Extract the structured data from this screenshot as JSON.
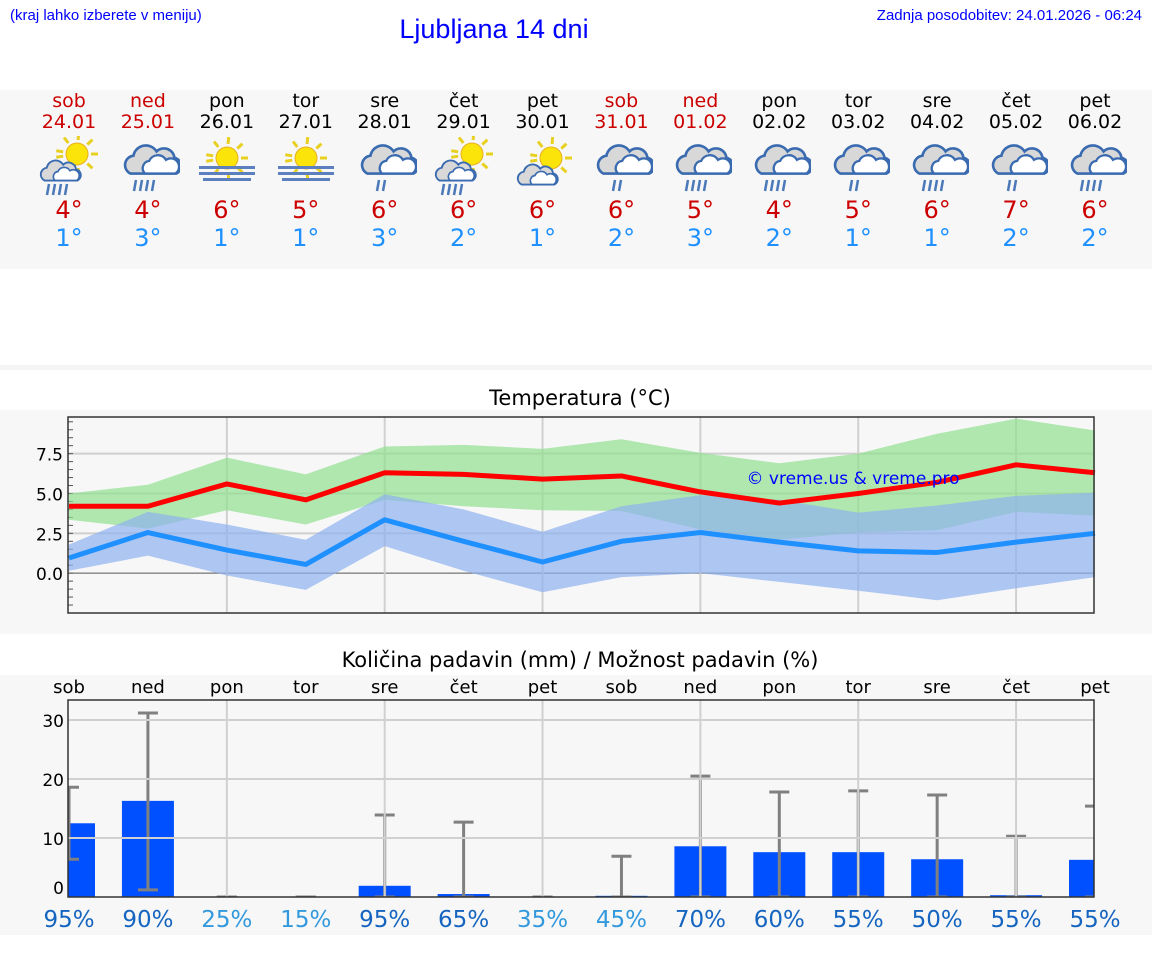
{
  "header": {
    "hint": "(kraj lahko izberete v meniju)",
    "title": "Ljubljana 14 dni",
    "updated": "Zadnja posodobitev: 24.01.2026 - 06:24"
  },
  "colors": {
    "weekend": "#cc0000",
    "weekday": "#000000",
    "max_temp": "#cc0000",
    "min_temp": "#1e90ff",
    "link": "#0000ff"
  },
  "days": [
    {
      "name": "sob",
      "date": "24.01",
      "weekend": true,
      "icon": "sun-cloud-rain",
      "max": "4°",
      "min": "1°"
    },
    {
      "name": "ned",
      "date": "25.01",
      "weekend": true,
      "icon": "cloud-heavy-rain",
      "max": "4°",
      "min": "3°"
    },
    {
      "name": "pon",
      "date": "26.01",
      "weekend": false,
      "icon": "sun-fog",
      "max": "6°",
      "min": "1°"
    },
    {
      "name": "tor",
      "date": "27.01",
      "weekend": false,
      "icon": "sun-fog",
      "max": "5°",
      "min": "1°"
    },
    {
      "name": "sre",
      "date": "28.01",
      "weekend": false,
      "icon": "cloud-light-rain",
      "max": "6°",
      "min": "3°"
    },
    {
      "name": "čet",
      "date": "29.01",
      "weekend": false,
      "icon": "sun-cloud-rain",
      "max": "6°",
      "min": "2°"
    },
    {
      "name": "pet",
      "date": "30.01",
      "weekend": false,
      "icon": "sun-cloud",
      "max": "6°",
      "min": "1°"
    },
    {
      "name": "sob",
      "date": "31.01",
      "weekend": true,
      "icon": "cloud-light-rain",
      "max": "6°",
      "min": "2°"
    },
    {
      "name": "ned",
      "date": "01.02",
      "weekend": true,
      "icon": "cloud-heavy-rain",
      "max": "5°",
      "min": "3°"
    },
    {
      "name": "pon",
      "date": "02.02",
      "weekend": false,
      "icon": "cloud-heavy-rain",
      "max": "4°",
      "min": "2°"
    },
    {
      "name": "tor",
      "date": "03.02",
      "weekend": false,
      "icon": "cloud-light-rain",
      "max": "5°",
      "min": "1°"
    },
    {
      "name": "sre",
      "date": "04.02",
      "weekend": false,
      "icon": "cloud-heavy-rain",
      "max": "6°",
      "min": "1°"
    },
    {
      "name": "čet",
      "date": "05.02",
      "weekend": false,
      "icon": "cloud-light-rain",
      "max": "7°",
      "min": "2°"
    },
    {
      "name": "pet",
      "date": "06.02",
      "weekend": false,
      "icon": "cloud-heavy-rain",
      "max": "6°",
      "min": "2°"
    }
  ],
  "chart_data": [
    {
      "type": "line",
      "title": "Temperatura (°C)",
      "watermark": "© vreme.us & vreme.pro",
      "ylim": [
        -2.5,
        9.8
      ],
      "yticks": [
        "0.0",
        "2.5",
        "5.0",
        "7.5"
      ],
      "ytick_values": [
        0,
        2.5,
        5.0,
        7.5
      ],
      "grid": true,
      "series": [
        {
          "role": "max",
          "color": "#ff0000",
          "band_color": "#90e090",
          "values": [
            4.2,
            4.2,
            5.6,
            4.6,
            6.3,
            6.2,
            5.9,
            6.1,
            5.1,
            4.4,
            5.0,
            5.7,
            6.8,
            6.3
          ],
          "band_low": [
            3.35,
            2.8,
            3.95,
            3.05,
            4.6,
            4.2,
            3.95,
            3.9,
            2.75,
            2.1,
            2.55,
            2.7,
            3.85,
            3.6
          ],
          "band_high": [
            5.0,
            5.55,
            7.25,
            6.2,
            7.95,
            8.05,
            7.8,
            8.4,
            7.55,
            6.9,
            7.5,
            8.75,
            9.7,
            8.95
          ]
        },
        {
          "role": "min",
          "color": "#1e90ff",
          "band_color": "#8fb0f0",
          "values": [
            0.95,
            2.55,
            1.45,
            0.55,
            3.35,
            2.0,
            0.7,
            2.0,
            2.55,
            1.95,
            1.4,
            1.3,
            1.95,
            2.5
          ],
          "band_low": [
            0.15,
            1.1,
            -0.15,
            -1.05,
            1.7,
            0.15,
            -1.2,
            -0.25,
            0.0,
            -0.55,
            -1.1,
            -1.7,
            -0.95,
            -0.25
          ],
          "band_high": [
            1.8,
            3.85,
            3.05,
            2.1,
            4.95,
            4.0,
            2.6,
            4.2,
            4.9,
            4.6,
            3.8,
            4.25,
            4.85,
            5.05
          ]
        }
      ]
    },
    {
      "type": "bar",
      "title": "Količina padavin (mm) / Možnost padavin (%)",
      "categories": [
        "sob",
        "ned",
        "pon",
        "tor",
        "sre",
        "čet",
        "pet",
        "sob",
        "ned",
        "pon",
        "tor",
        "sre",
        "čet",
        "pet"
      ],
      "ylim": [
        0,
        33.4
      ],
      "yticks": [
        "0",
        "10",
        "20",
        "30"
      ],
      "ytick_values": [
        0,
        10,
        20,
        30
      ],
      "grid": true,
      "bar_color": "#0050ff",
      "errorbar_color": "#808080",
      "values": [
        12.5,
        16.3,
        0,
        0,
        1.9,
        0.5,
        0,
        0.2,
        8.6,
        7.6,
        7.6,
        6.4,
        0.3,
        6.3
      ],
      "err_low": [
        6.4,
        1.2,
        0,
        0,
        0,
        0,
        0,
        0,
        0,
        0,
        0,
        0,
        0,
        0
      ],
      "err_high": [
        18.6,
        31.2,
        0,
        0,
        13.9,
        12.7,
        0,
        6.9,
        20.5,
        17.8,
        18.0,
        17.3,
        10.3,
        15.4
      ],
      "probability": [
        "95%",
        "90%",
        "25%",
        "15%",
        "95%",
        "65%",
        "35%",
        "45%",
        "70%",
        "60%",
        "55%",
        "50%",
        "55%",
        "55%"
      ],
      "probability_colors": {
        "high": "#1565c0",
        "low": "#3399dd"
      }
    }
  ]
}
